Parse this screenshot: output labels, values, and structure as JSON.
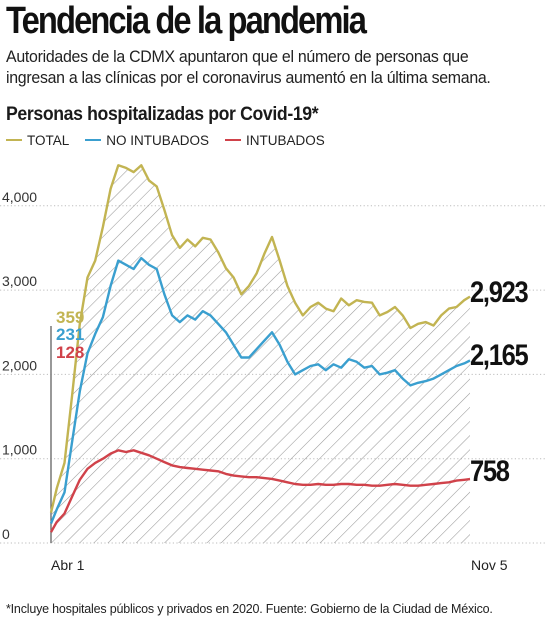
{
  "header": {
    "title": "Tendencia de la pandemia",
    "dek": "Autoridades de la CDMX apuntaron que el número de personas que ingresan a las clínicas por el coronavirus aumentó en la última semana."
  },
  "chart_data": {
    "type": "line",
    "title": "Personas hospitalizadas por Covid-19*",
    "xlabel": "",
    "ylabel": "",
    "x_range": [
      "Abr 1",
      "Nov 5"
    ],
    "x_tick_labels": [
      "Abr 1",
      "Nov 5"
    ],
    "ylim": [
      0,
      4600
    ],
    "y_ticks": [
      0,
      1000,
      2000,
      3000,
      4000
    ],
    "y_tick_labels": [
      "0",
      "1,000",
      "2,000",
      "3,000",
      "4,000"
    ],
    "grid": true,
    "legend_position": "top-left",
    "series": [
      {
        "name": "TOTAL",
        "color": "#c2b452",
        "start_label": "359",
        "end_label": "2,923",
        "dates": [
          "2020-04-01",
          "2020-04-04",
          "2020-04-08",
          "2020-04-12",
          "2020-04-16",
          "2020-04-20",
          "2020-04-24",
          "2020-04-28",
          "2020-05-02",
          "2020-05-06",
          "2020-05-10",
          "2020-05-14",
          "2020-05-18",
          "2020-05-22",
          "2020-05-26",
          "2020-05-30",
          "2020-06-03",
          "2020-06-07",
          "2020-06-11",
          "2020-06-15",
          "2020-06-19",
          "2020-06-23",
          "2020-06-27",
          "2020-07-01",
          "2020-07-05",
          "2020-07-09",
          "2020-07-13",
          "2020-07-17",
          "2020-07-21",
          "2020-07-25",
          "2020-07-29",
          "2020-08-02",
          "2020-08-06",
          "2020-08-10",
          "2020-08-14",
          "2020-08-18",
          "2020-08-22",
          "2020-08-26",
          "2020-08-30",
          "2020-09-03",
          "2020-09-07",
          "2020-09-11",
          "2020-09-15",
          "2020-09-19",
          "2020-09-23",
          "2020-09-27",
          "2020-10-01",
          "2020-10-05",
          "2020-10-09",
          "2020-10-13",
          "2020-10-17",
          "2020-10-21",
          "2020-10-25",
          "2020-10-29",
          "2020-11-02",
          "2020-11-05"
        ],
        "values": [
          359,
          650,
          950,
          1750,
          2600,
          3150,
          3350,
          3750,
          4200,
          4480,
          4450,
          4400,
          4480,
          4300,
          4230,
          3950,
          3650,
          3500,
          3600,
          3520,
          3620,
          3600,
          3450,
          3260,
          3150,
          2950,
          3050,
          3200,
          3430,
          3630,
          3350,
          3050,
          2850,
          2700,
          2800,
          2850,
          2780,
          2750,
          2900,
          2820,
          2880,
          2860,
          2850,
          2700,
          2740,
          2800,
          2700,
          2550,
          2600,
          2620,
          2580,
          2700,
          2780,
          2800,
          2880,
          2923
        ]
      },
      {
        "name": "NO INTUBADOS",
        "color": "#3a9fcf",
        "start_label": "231",
        "end_label": "2,165",
        "dates": [
          "2020-04-01",
          "2020-04-04",
          "2020-04-08",
          "2020-04-12",
          "2020-04-16",
          "2020-04-20",
          "2020-04-24",
          "2020-04-28",
          "2020-05-02",
          "2020-05-06",
          "2020-05-10",
          "2020-05-14",
          "2020-05-18",
          "2020-05-22",
          "2020-05-26",
          "2020-05-30",
          "2020-06-03",
          "2020-06-07",
          "2020-06-11",
          "2020-06-15",
          "2020-06-19",
          "2020-06-23",
          "2020-06-27",
          "2020-07-01",
          "2020-07-05",
          "2020-07-09",
          "2020-07-13",
          "2020-07-17",
          "2020-07-21",
          "2020-07-25",
          "2020-07-29",
          "2020-08-02",
          "2020-08-06",
          "2020-08-10",
          "2020-08-14",
          "2020-08-18",
          "2020-08-22",
          "2020-08-26",
          "2020-08-30",
          "2020-09-03",
          "2020-09-07",
          "2020-09-11",
          "2020-09-15",
          "2020-09-19",
          "2020-09-23",
          "2020-09-27",
          "2020-10-01",
          "2020-10-05",
          "2020-10-09",
          "2020-10-13",
          "2020-10-17",
          "2020-10-21",
          "2020-10-25",
          "2020-10-29",
          "2020-11-02",
          "2020-11-05"
        ],
        "values": [
          231,
          400,
          600,
          1200,
          1800,
          2250,
          2480,
          2680,
          3050,
          3350,
          3300,
          3250,
          3380,
          3300,
          3250,
          2950,
          2700,
          2620,
          2700,
          2650,
          2750,
          2700,
          2600,
          2500,
          2350,
          2200,
          2200,
          2300,
          2400,
          2500,
          2350,
          2150,
          2000,
          2050,
          2100,
          2120,
          2050,
          2120,
          2080,
          2180,
          2150,
          2080,
          2100,
          2000,
          2020,
          2050,
          1950,
          1870,
          1900,
          1920,
          1950,
          2000,
          2050,
          2100,
          2130,
          2165
        ]
      },
      {
        "name": "INTUBADOS",
        "color": "#d0424a",
        "start_label": "128",
        "end_label": "758",
        "dates": [
          "2020-04-01",
          "2020-04-04",
          "2020-04-08",
          "2020-04-12",
          "2020-04-16",
          "2020-04-20",
          "2020-04-24",
          "2020-04-28",
          "2020-05-02",
          "2020-05-06",
          "2020-05-10",
          "2020-05-14",
          "2020-05-18",
          "2020-05-22",
          "2020-05-26",
          "2020-05-30",
          "2020-06-03",
          "2020-06-07",
          "2020-06-11",
          "2020-06-15",
          "2020-06-19",
          "2020-06-23",
          "2020-06-27",
          "2020-07-01",
          "2020-07-05",
          "2020-07-09",
          "2020-07-13",
          "2020-07-17",
          "2020-07-21",
          "2020-07-25",
          "2020-07-29",
          "2020-08-02",
          "2020-08-06",
          "2020-08-10",
          "2020-08-14",
          "2020-08-18",
          "2020-08-22",
          "2020-08-26",
          "2020-08-30",
          "2020-09-03",
          "2020-09-07",
          "2020-09-11",
          "2020-09-15",
          "2020-09-19",
          "2020-09-23",
          "2020-09-27",
          "2020-10-01",
          "2020-10-05",
          "2020-10-09",
          "2020-10-13",
          "2020-10-17",
          "2020-10-21",
          "2020-10-25",
          "2020-10-29",
          "2020-11-02",
          "2020-11-05"
        ],
        "values": [
          128,
          250,
          350,
          550,
          750,
          880,
          950,
          1000,
          1060,
          1100,
          1080,
          1100,
          1070,
          1040,
          1000,
          960,
          920,
          900,
          890,
          880,
          870,
          860,
          850,
          820,
          800,
          790,
          780,
          780,
          770,
          760,
          740,
          720,
          700,
          690,
          690,
          700,
          690,
          690,
          700,
          700,
          690,
          690,
          680,
          680,
          690,
          700,
          690,
          680,
          680,
          690,
          700,
          710,
          720,
          740,
          750,
          758
        ]
      }
    ]
  },
  "footnote": "*Incluye hospitales públicos y privados en 2020. Fuente: Gobierno de la Ciudad de México."
}
